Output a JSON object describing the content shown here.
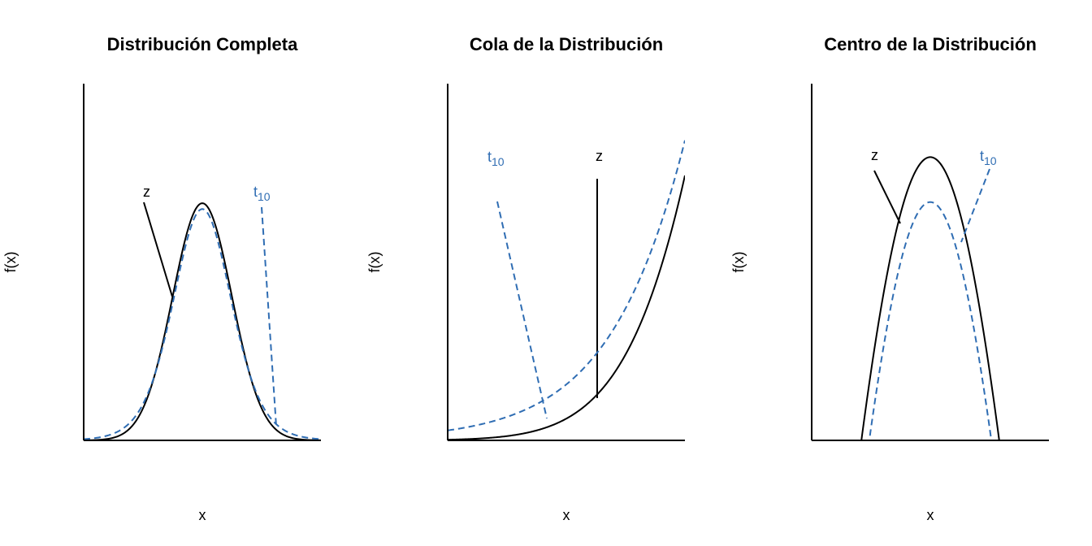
{
  "chart_data": [
    {
      "type": "line",
      "title": "Distribución Completa",
      "xlabel": "x",
      "ylabel": "f(x)",
      "xlim": [
        -4,
        4
      ],
      "ylim": [
        0,
        0.6
      ],
      "grid": false,
      "tick_labels": false,
      "series": [
        {
          "label": "z",
          "function": "standard normal density",
          "style": "solid",
          "color": "#000000"
        },
        {
          "label": "t",
          "label_subscript": "10",
          "function": "Student t density, df=10",
          "style": "dashed",
          "color": "#2f6db3"
        }
      ]
    },
    {
      "type": "line",
      "title": "Cola de la Distribución",
      "xlabel": "x",
      "ylabel": "f(x)",
      "xlim": [
        -4,
        -2
      ],
      "ylim": [
        0,
        0.0727
      ],
      "grid": false,
      "tick_labels": false,
      "series": [
        {
          "label": "z",
          "function": "standard normal density",
          "style": "solid",
          "color": "#000000"
        },
        {
          "label": "t",
          "label_subscript": "10",
          "function": "Student t density, df=10",
          "style": "dashed",
          "color": "#2f6db3"
        }
      ]
    },
    {
      "type": "line",
      "title": "Centro de la Distribución",
      "xlabel": "x",
      "ylabel": "f(x)",
      "xlim": [
        -1,
        1
      ],
      "ylim": [
        0.337,
        0.415
      ],
      "grid": false,
      "tick_labels": false,
      "series": [
        {
          "label": "z",
          "function": "standard normal density",
          "style": "solid",
          "color": "#000000"
        },
        {
          "label": "t",
          "label_subscript": "10",
          "function": "Student t density, df=10",
          "style": "dashed",
          "color": "#2f6db3"
        }
      ]
    }
  ]
}
